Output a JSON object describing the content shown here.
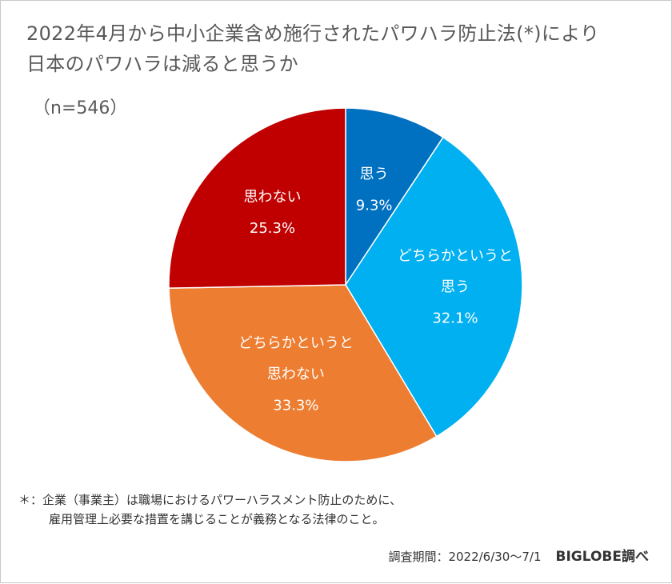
{
  "title": {
    "line1": "2022年4月から中小企業含め施行されたパワハラ防止法(*)により",
    "line2": "日本のパワハラは減ると思うか"
  },
  "sample_size": "（n=546）",
  "chart_data": {
    "type": "pie",
    "start": "12 o'clock",
    "direction": "clockwise",
    "slices": [
      {
        "label_lines": [
          "思う"
        ],
        "value": 9.3,
        "value_label": "9.3%",
        "color": "#0070C0"
      },
      {
        "label_lines": [
          "どちらかというと",
          "思う"
        ],
        "value": 32.1,
        "value_label": "32.1%",
        "color": "#00B0F0"
      },
      {
        "label_lines": [
          "どちらかというと",
          "思わない"
        ],
        "value": 33.3,
        "value_label": "33.3%",
        "color": "#ED7D31"
      },
      {
        "label_lines": [
          "思わない"
        ],
        "value": 25.3,
        "value_label": "25.3%",
        "color": "#C00000"
      }
    ]
  },
  "note": {
    "line1": "＊：企業（事業主）は職場におけるパワーハラスメント防止のために、",
    "line2": "雇用管理上必要な措置を講じることが義務となる法律のこと。"
  },
  "footer": {
    "period": "調査期間：2022/6/30〜7/1",
    "source": "BIGLOBE調べ"
  }
}
